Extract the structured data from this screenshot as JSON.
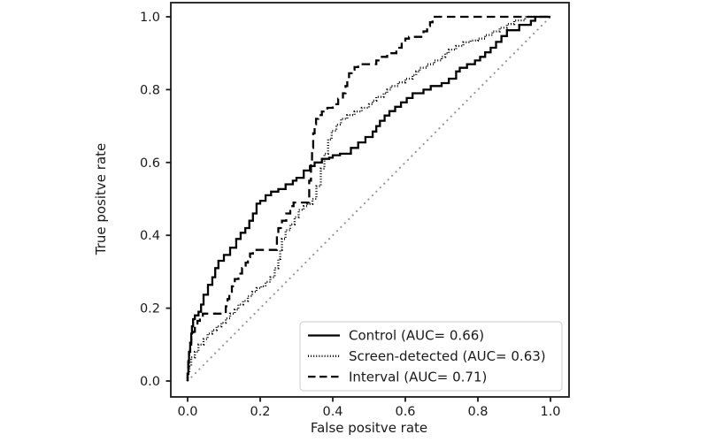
{
  "figure": {
    "background": "#ffffff",
    "text_color": "#1a1a1a",
    "spine_color": "#1a1a1a",
    "line_color": "#000000",
    "reference_color": "#949494",
    "legend_border_color": "#d5d5d5",
    "legend_fill_color": "#ffffff"
  },
  "chart_data": {
    "type": "line",
    "subtype": "roc-step-curves",
    "title": "",
    "xlabel": "False positve rate",
    "ylabel": "True positve rate",
    "xlim": [
      -0.05,
      1.05
    ],
    "ylim": [
      -0.05,
      1.05
    ],
    "x_ticks": [
      0.0,
      0.2,
      0.4,
      0.6,
      0.8,
      1.0
    ],
    "y_ticks": [
      0.0,
      0.2,
      0.4,
      0.6,
      0.8,
      1.0
    ],
    "x_tick_labels": [
      "0.0",
      "0.2",
      "0.4",
      "0.6",
      "0.8",
      "1.0"
    ],
    "y_tick_labels": [
      "0.0",
      "0.2",
      "0.4",
      "0.6",
      "0.8",
      "1.0"
    ],
    "grid": false,
    "legend_position": "lower right",
    "series": [
      {
        "name": "Control",
        "auc": 0.66,
        "label": "Control (AUC= 0.66)",
        "style": "solid",
        "color": "#000000",
        "points": [
          [
            0,
            0
          ],
          [
            0.002,
            0.02
          ],
          [
            0.004,
            0.05
          ],
          [
            0.007,
            0.08
          ],
          [
            0.01,
            0.105
          ],
          [
            0.012,
            0.13
          ],
          [
            0.015,
            0.15
          ],
          [
            0.02,
            0.17
          ],
          [
            0.03,
            0.18
          ],
          [
            0.037,
            0.19
          ],
          [
            0.044,
            0.21
          ],
          [
            0.056,
            0.237
          ],
          [
            0.068,
            0.264
          ],
          [
            0.076,
            0.285
          ],
          [
            0.085,
            0.31
          ],
          [
            0.1,
            0.33
          ],
          [
            0.117,
            0.346
          ],
          [
            0.134,
            0.366
          ],
          [
            0.146,
            0.39
          ],
          [
            0.159,
            0.407
          ],
          [
            0.17,
            0.42
          ],
          [
            0.18,
            0.44
          ],
          [
            0.19,
            0.46
          ],
          [
            0.2,
            0.487
          ],
          [
            0.215,
            0.495
          ],
          [
            0.23,
            0.51
          ],
          [
            0.25,
            0.52
          ],
          [
            0.27,
            0.527
          ],
          [
            0.29,
            0.54
          ],
          [
            0.3,
            0.55
          ],
          [
            0.32,
            0.558
          ],
          [
            0.337,
            0.578
          ],
          [
            0.35,
            0.59
          ],
          [
            0.37,
            0.6
          ],
          [
            0.39,
            0.61
          ],
          [
            0.4,
            0.613
          ],
          [
            0.42,
            0.62
          ],
          [
            0.45,
            0.624
          ],
          [
            0.47,
            0.64
          ],
          [
            0.49,
            0.655
          ],
          [
            0.51,
            0.67
          ],
          [
            0.53,
            0.7
          ],
          [
            0.556,
            0.729
          ],
          [
            0.588,
            0.753
          ],
          [
            0.62,
            0.777
          ],
          [
            0.65,
            0.79
          ],
          [
            0.67,
            0.8
          ],
          [
            0.7,
            0.81
          ],
          [
            0.72,
            0.818
          ],
          [
            0.74,
            0.83
          ],
          [
            0.75,
            0.85
          ],
          [
            0.77,
            0.86
          ],
          [
            0.792,
            0.87
          ],
          [
            0.82,
            0.89
          ],
          [
            0.85,
            0.915
          ],
          [
            0.88,
            0.947
          ],
          [
            0.914,
            0.963
          ],
          [
            0.946,
            0.978
          ],
          [
            0.97,
            1
          ],
          [
            1,
            1
          ]
        ]
      },
      {
        "name": "Screen-detected",
        "auc": 0.63,
        "label": "Screen-detected (AUC= 0.63)",
        "style": "fine-dotted",
        "color": "#000000",
        "points": [
          [
            0,
            0
          ],
          [
            0.005,
            0.02
          ],
          [
            0.01,
            0.04
          ],
          [
            0.02,
            0.065
          ],
          [
            0.03,
            0.08
          ],
          [
            0.044,
            0.1
          ],
          [
            0.055,
            0.115
          ],
          [
            0.068,
            0.13
          ],
          [
            0.08,
            0.14
          ],
          [
            0.093,
            0.15
          ],
          [
            0.105,
            0.16
          ],
          [
            0.117,
            0.172
          ],
          [
            0.13,
            0.185
          ],
          [
            0.14,
            0.196
          ],
          [
            0.153,
            0.21
          ],
          [
            0.166,
            0.22
          ],
          [
            0.178,
            0.233
          ],
          [
            0.19,
            0.245
          ],
          [
            0.203,
            0.255
          ],
          [
            0.215,
            0.26
          ],
          [
            0.228,
            0.272
          ],
          [
            0.24,
            0.285
          ],
          [
            0.25,
            0.31
          ],
          [
            0.255,
            0.335
          ],
          [
            0.26,
            0.36
          ],
          [
            0.27,
            0.39
          ],
          [
            0.283,
            0.414
          ],
          [
            0.295,
            0.43
          ],
          [
            0.306,
            0.45
          ],
          [
            0.32,
            0.47
          ],
          [
            0.33,
            0.48
          ],
          [
            0.344,
            0.486
          ],
          [
            0.355,
            0.5
          ],
          [
            0.367,
            0.535
          ],
          [
            0.377,
            0.583
          ],
          [
            0.387,
            0.624
          ],
          [
            0.397,
            0.663
          ],
          [
            0.41,
            0.687
          ],
          [
            0.423,
            0.704
          ],
          [
            0.44,
            0.72
          ],
          [
            0.46,
            0.73
          ],
          [
            0.48,
            0.74
          ],
          [
            0.5,
            0.75
          ],
          [
            0.52,
            0.77
          ],
          [
            0.54,
            0.78
          ],
          [
            0.56,
            0.8
          ],
          [
            0.58,
            0.81
          ],
          [
            0.6,
            0.82
          ],
          [
            0.62,
            0.83
          ],
          [
            0.64,
            0.85
          ],
          [
            0.66,
            0.86
          ],
          [
            0.68,
            0.87
          ],
          [
            0.7,
            0.88
          ],
          [
            0.72,
            0.9
          ],
          [
            0.74,
            0.91
          ],
          [
            0.76,
            0.92
          ],
          [
            0.78,
            0.93
          ],
          [
            0.8,
            0.935
          ],
          [
            0.82,
            0.94
          ],
          [
            0.84,
            0.95
          ],
          [
            0.86,
            0.96
          ],
          [
            0.88,
            0.97
          ],
          [
            0.9,
            0.98
          ],
          [
            0.93,
            0.99
          ],
          [
            0.96,
            1
          ],
          [
            1,
            1
          ]
        ]
      },
      {
        "name": "Interval",
        "auc": 0.71,
        "label": "Interval (AUC= 0.71)",
        "style": "dashed",
        "color": "#000000",
        "points": [
          [
            0,
            0
          ],
          [
            0.002,
            0.03
          ],
          [
            0.004,
            0.06
          ],
          [
            0.007,
            0.08
          ],
          [
            0.01,
            0.1
          ],
          [
            0.015,
            0.12
          ],
          [
            0.02,
            0.135
          ],
          [
            0.027,
            0.15
          ],
          [
            0.034,
            0.165
          ],
          [
            0.042,
            0.175
          ],
          [
            0.048,
            0.185
          ],
          [
            0.105,
            0.185
          ],
          [
            0.11,
            0.205
          ],
          [
            0.115,
            0.225
          ],
          [
            0.122,
            0.245
          ],
          [
            0.13,
            0.26
          ],
          [
            0.14,
            0.28
          ],
          [
            0.15,
            0.295
          ],
          [
            0.16,
            0.31
          ],
          [
            0.166,
            0.325
          ],
          [
            0.172,
            0.34
          ],
          [
            0.18,
            0.35
          ],
          [
            0.19,
            0.36
          ],
          [
            0.246,
            0.36
          ],
          [
            0.25,
            0.4
          ],
          [
            0.26,
            0.42
          ],
          [
            0.272,
            0.44
          ],
          [
            0.283,
            0.46
          ],
          [
            0.292,
            0.48
          ],
          [
            0.3,
            0.49
          ],
          [
            0.335,
            0.49
          ],
          [
            0.34,
            0.55
          ],
          [
            0.343,
            0.6
          ],
          [
            0.346,
            0.64
          ],
          [
            0.35,
            0.68
          ],
          [
            0.354,
            0.705
          ],
          [
            0.36,
            0.72
          ],
          [
            0.37,
            0.73
          ],
          [
            0.385,
            0.74
          ],
          [
            0.4,
            0.75
          ],
          [
            0.415,
            0.76
          ],
          [
            0.428,
            0.775
          ],
          [
            0.435,
            0.79
          ],
          [
            0.44,
            0.81
          ],
          [
            0.445,
            0.83
          ],
          [
            0.452,
            0.845
          ],
          [
            0.46,
            0.855
          ],
          [
            0.47,
            0.862
          ],
          [
            0.48,
            0.87
          ],
          [
            0.52,
            0.87
          ],
          [
            0.53,
            0.88
          ],
          [
            0.55,
            0.89
          ],
          [
            0.575,
            0.9
          ],
          [
            0.59,
            0.915
          ],
          [
            0.6,
            0.93
          ],
          [
            0.61,
            0.94
          ],
          [
            0.65,
            0.945
          ],
          [
            0.66,
            0.96
          ],
          [
            0.668,
            0.975
          ],
          [
            0.675,
            0.985
          ],
          [
            0.69,
            1
          ],
          [
            1,
            1
          ]
        ]
      }
    ],
    "reference_line": {
      "name": "chance-diagonal",
      "style": "dotted",
      "color": "#949494",
      "points": [
        [
          0,
          0
        ],
        [
          1,
          1
        ]
      ]
    }
  }
}
